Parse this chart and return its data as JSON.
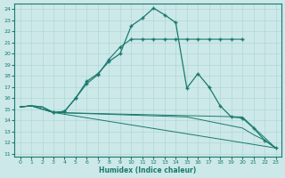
{
  "xlabel": "Humidex (Indice chaleur)",
  "bg_color": "#cce8e8",
  "line_color": "#1a7a6e",
  "grid_color": "#b0d8d8",
  "xlim": [
    -0.5,
    23.5
  ],
  "ylim": [
    10.7,
    24.5
  ],
  "yticks": [
    11,
    12,
    13,
    14,
    15,
    16,
    17,
    18,
    19,
    20,
    21,
    22,
    23,
    24
  ],
  "xticks": [
    0,
    1,
    2,
    3,
    4,
    5,
    6,
    7,
    8,
    9,
    10,
    11,
    12,
    13,
    14,
    15,
    16,
    17,
    18,
    19,
    20,
    21,
    22,
    23
  ],
  "line1_x": [
    0,
    1,
    3,
    23
  ],
  "line1_y": [
    15.2,
    15.3,
    14.7,
    11.5
  ],
  "line2_x": [
    0,
    1,
    3,
    20,
    23
  ],
  "line2_y": [
    15.2,
    15.3,
    14.7,
    14.3,
    11.5
  ],
  "line3_x": [
    0,
    1,
    3,
    15,
    20,
    21,
    22,
    23
  ],
  "line3_y": [
    15.2,
    15.3,
    14.7,
    14.3,
    13.3,
    12.7,
    12.2,
    11.5
  ],
  "curve1_x": [
    0,
    1,
    2,
    3,
    4,
    5,
    6,
    7,
    8,
    9,
    10,
    11,
    12,
    13,
    14,
    15,
    16,
    17,
    18,
    19,
    20
  ],
  "curve1_y": [
    15.2,
    15.3,
    15.2,
    14.7,
    14.8,
    16.0,
    17.3,
    18.1,
    19.5,
    20.6,
    21.3,
    21.3,
    21.3,
    21.3,
    21.3,
    21.3,
    21.3,
    21.3,
    21.3,
    21.3,
    21.3
  ],
  "curve2_x": [
    0,
    1,
    2,
    3,
    4,
    5,
    6,
    7,
    8,
    9,
    10,
    11,
    12,
    13,
    14,
    15,
    16,
    17,
    18,
    19,
    20,
    21,
    22,
    23
  ],
  "curve2_y": [
    15.2,
    15.3,
    15.2,
    14.7,
    14.8,
    16.0,
    17.5,
    18.2,
    19.3,
    20.0,
    22.5,
    23.2,
    24.1,
    23.5,
    22.8,
    16.9,
    18.2,
    17.0,
    15.3,
    14.3,
    14.2,
    13.3,
    12.2,
    11.5
  ]
}
